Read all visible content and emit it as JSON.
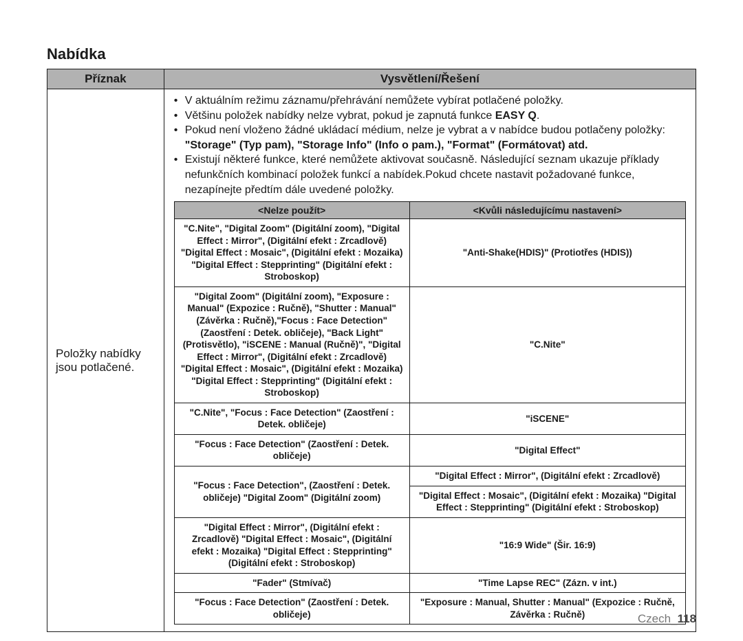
{
  "title": "Nabídka",
  "header": {
    "col1": "Příznak",
    "col2": "Vysvětlení/Řešení"
  },
  "leftCell": "Položky nabídky jsou potlačené.",
  "bullets": [
    "V aktuálním režimu záznamu/přehrávání nemůžete vybírat potlačené položky.",
    "Většinu položek nabídky nelze vybrat, pokud je zapnutá funkce <b>EASY Q</b>.",
    "Pokud není vloženo žádné ukládací médium, nelze je vybrat a v nabídce budou potlačeny položky: <b>\"Storage\" (Typ pam), \"Storage Info\" (Info o pam.), \"Format\" (Formátovat) atd.</b>",
    "Existují některé funkce, které nemůžete aktivovat současně. Následující seznam ukazuje příklady nefunkčních kombinací položek funkcí a nabídek.Pokud chcete nastavit požadované funkce, nezapínejte předtím dále uvedené položky."
  ],
  "inner": {
    "header": {
      "col1": "<Nelze použít>",
      "col2": "<Kvůli následujícímu nastavení>"
    },
    "rows": [
      {
        "left": "\"C.Nite\", \"Digital Zoom\" (Digitální zoom), \"Digital Effect : Mirror\", (Digitální efekt : Zrcadlově) \"Digital Effect : Mosaic\", (Digitální efekt : Mozaika) \"Digital Effect : Stepprinting\" (Digitální efekt : Stroboskop)",
        "right": "\"Anti-Shake(HDIS)\" (Protiotřes (HDIS))"
      },
      {
        "left": "\"Digital Zoom\" (Digitální zoom), \"Exposure : Manual\" (Expozice : Ručně), \"Shutter : Manual\" (Závěrka : Ručně),\"Focus : Face Detection\" (Zaostření : Detek. obličeje), \"Back Light\" (Protisvětlo), \"iSCENE : Manual (Ručně)\", \"Digital Effect : Mirror\", (Digitální efekt : Zrcadlově) \"Digital Effect : Mosaic\", (Digitální efekt : Mozaika) \"Digital Effect : Stepprinting\" (Digitální efekt : Stroboskop)",
        "right": "\"C.Nite\""
      },
      {
        "left": "\"C.Nite\", \"Focus : Face Detection\" (Zaostření : Detek. obličeje)",
        "right": "\"iSCENE\""
      },
      {
        "left": "\"Focus : Face Detection\" (Zaostření : Detek. obličeje)",
        "right": "\"Digital Effect\""
      },
      {
        "left": "\"Focus : Face Detection\", (Zaostření : Detek. obličeje) \"Digital Zoom\" (Digitální zoom)",
        "rightSplit": [
          "\"Digital Effect : Mirror\", (Digitální efekt : Zrcadlově)",
          "\"Digital Effect : Mosaic\", (Digitální efekt : Mozaika) \"Digital Effect : Stepprinting\" (Digitální efekt : Stroboskop)"
        ]
      },
      {
        "left": "\"Digital Effect : Mirror\", (Digitální efekt : Zrcadlově) \"Digital Effect : Mosaic\", (Digitální efekt : Mozaika) \"Digital Effect : Stepprinting\" (Digitální efekt : Stroboskop)",
        "right": "\"16:9 Wide\" (Šir. 16:9)"
      },
      {
        "left": "\"Fader\" (Stmívač)",
        "right": "\"Time Lapse REC\" (Zázn. v int.)"
      },
      {
        "left": "\"Focus : Face Detection\" (Zaostření : Detek. obličeje)",
        "right": "\"Exposure : Manual, Shutter : Manual\" (Expozice : Ručně, Závěrka : Ručně)"
      }
    ],
    "colWidths": [
      "46%",
      "54%"
    ]
  },
  "footer": {
    "text": "Czech",
    "page": "118"
  },
  "colors": {
    "headerBg": "#b2b2b2",
    "border": "#1a1a1a",
    "footerGray": "#777777"
  }
}
